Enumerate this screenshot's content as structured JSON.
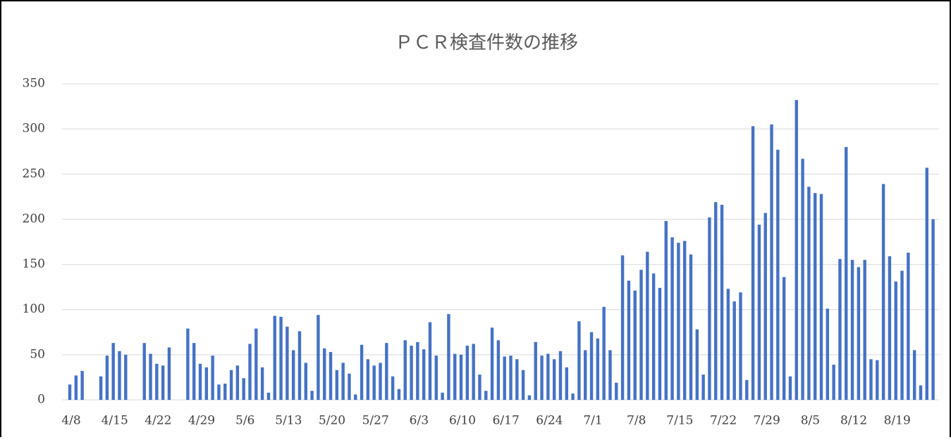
{
  "chart_data": {
    "type": "bar",
    "title": "ＰＣＲ検査件数の推移",
    "categories": [
      "4/8",
      null,
      null,
      null,
      null,
      null,
      null,
      "4/15",
      null,
      null,
      null,
      null,
      null,
      null,
      "4/22",
      null,
      null,
      null,
      null,
      null,
      null,
      "4/29",
      null,
      null,
      null,
      null,
      null,
      null,
      "5/6",
      null,
      null,
      null,
      null,
      null,
      null,
      "5/13",
      null,
      null,
      null,
      null,
      null,
      null,
      "5/20",
      null,
      null,
      null,
      null,
      null,
      null,
      "5/27",
      null,
      null,
      null,
      null,
      null,
      null,
      "6/3",
      null,
      null,
      null,
      null,
      null,
      null,
      "6/10",
      null,
      null,
      null,
      null,
      null,
      null,
      "6/17",
      null,
      null,
      null,
      null,
      null,
      null,
      "6/24",
      null,
      null,
      null,
      null,
      null,
      null,
      "7/1",
      null,
      null,
      null,
      null,
      null,
      null,
      "7/8",
      null,
      null,
      null,
      null,
      null,
      null,
      "7/15",
      null,
      null,
      null,
      null,
      null,
      null,
      "7/22",
      null,
      null,
      null,
      null,
      null,
      null,
      "7/29",
      null,
      null,
      null,
      null,
      null,
      null,
      "8/5",
      null,
      null,
      null,
      null,
      null,
      null,
      "8/12",
      null,
      null,
      null,
      null,
      null,
      null,
      "8/19",
      null,
      null,
      null,
      null,
      null,
      null
    ],
    "values": [
      17,
      27,
      32,
      0,
      0,
      26,
      49,
      63,
      54,
      50,
      0,
      0,
      63,
      51,
      40,
      38,
      58,
      0,
      0,
      79,
      63,
      40,
      36,
      49,
      17,
      18,
      33,
      38,
      24,
      62,
      79,
      36,
      8,
      93,
      92,
      81,
      55,
      76,
      41,
      10,
      94,
      57,
      53,
      33,
      41,
      29,
      6,
      61,
      45,
      38,
      41,
      63,
      26,
      12,
      66,
      60,
      64,
      56,
      86,
      49,
      8,
      95,
      51,
      50,
      60,
      62,
      28,
      10,
      80,
      66,
      48,
      49,
      45,
      33,
      5,
      64,
      49,
      51,
      45,
      54,
      36,
      7,
      87,
      55,
      75,
      68,
      103,
      55,
      19,
      160,
      132,
      121,
      144,
      164,
      140,
      124,
      198,
      180,
      174,
      176,
      161,
      78,
      28,
      202,
      219,
      216,
      123,
      109,
      119,
      22,
      303,
      194,
      207,
      305,
      277,
      136,
      26,
      332,
      267,
      236,
      229,
      228,
      101,
      39,
      156,
      280,
      155,
      147,
      155,
      45,
      44,
      239,
      159,
      131,
      143,
      163,
      55,
      16,
      257,
      200
    ],
    "color": "#4472c4",
    "ylim": [
      0,
      350
    ],
    "yticks": [
      0,
      50,
      100,
      150,
      200,
      250,
      300,
      350
    ],
    "grid": true
  }
}
